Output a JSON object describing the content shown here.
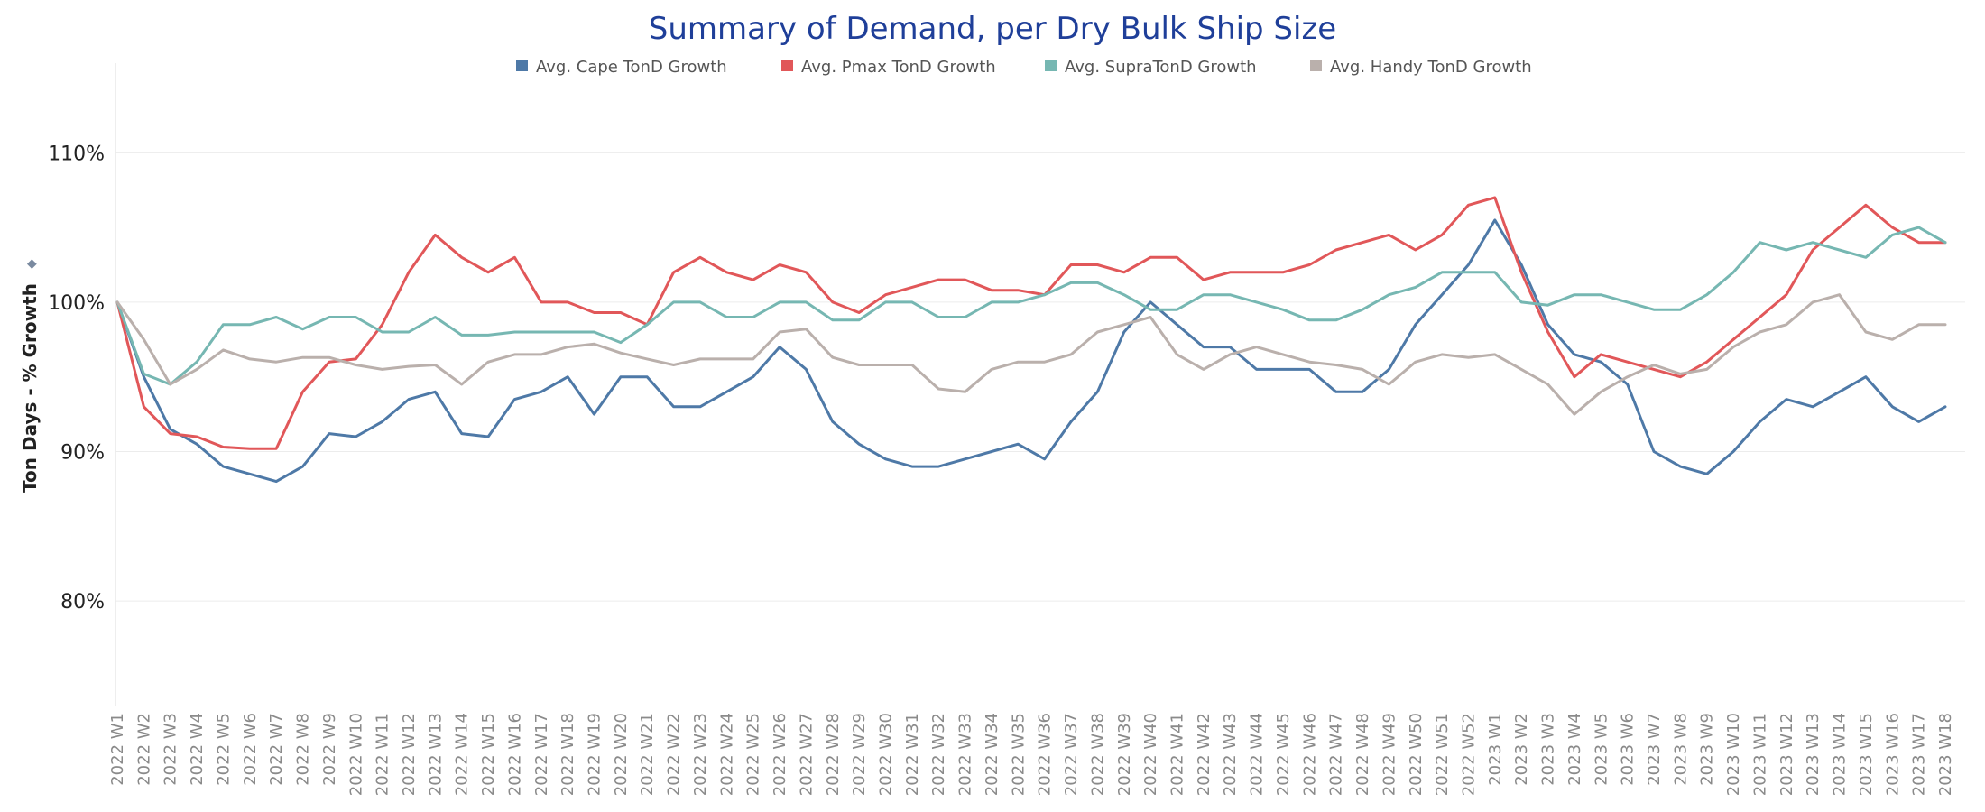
{
  "chart_data": {
    "type": "line",
    "title": "Summary of Demand, per Dry Bulk Ship Size",
    "ylabel": "Ton Days - % Growth",
    "ylabel_icon": "sort-icon",
    "ylim": [
      0.73,
      1.16
    ],
    "yticks": [
      {
        "value": 0.8,
        "label": "80%"
      },
      {
        "value": 0.9,
        "label": "90%"
      },
      {
        "value": 1.0,
        "label": "100%"
      },
      {
        "value": 1.1,
        "label": "110%"
      }
    ],
    "grid": "horizontal",
    "legend_position": "top",
    "xlabel": "",
    "x": [
      "2022 W1",
      "2022 W2",
      "2022 W3",
      "2022 W4",
      "2022 W5",
      "2022 W6",
      "2022 W7",
      "2022 W8",
      "2022 W9",
      "2022 W10",
      "2022 W11",
      "2022 W12",
      "2022 W13",
      "2022 W14",
      "2022 W15",
      "2022 W16",
      "2022 W17",
      "2022 W18",
      "2022 W19",
      "2022 W20",
      "2022 W21",
      "2022 W22",
      "2022 W23",
      "2022 W24",
      "2022 W25",
      "2022 W26",
      "2022 W27",
      "2022 W28",
      "2022 W29",
      "2022 W30",
      "2022 W31",
      "2022 W32",
      "2022 W33",
      "2022 W34",
      "2022 W35",
      "2022 W36",
      "2022 W37",
      "2022 W38",
      "2022 W39",
      "2022 W40",
      "2022 W41",
      "2022 W42",
      "2022 W43",
      "2022 W44",
      "2022 W45",
      "2022 W46",
      "2022 W47",
      "2022 W48",
      "2022 W49",
      "2022 W50",
      "2022 W51",
      "2022 W52",
      "2023 W1",
      "2023 W2",
      "2023 W3",
      "2023 W4",
      "2023 W5",
      "2023 W6",
      "2023 W7",
      "2023 W8",
      "2023 W9",
      "2023 W10",
      "2023 W11",
      "2023 W12",
      "2023 W13",
      "2023 W14",
      "2023 W15",
      "2023 W16",
      "2023 W17",
      "2023 W18"
    ],
    "series": [
      {
        "name": "Avg. Cape TonD Growth",
        "color": "#4e79a7",
        "values": [
          1.0,
          0.95,
          0.915,
          0.905,
          0.89,
          0.885,
          0.88,
          0.89,
          0.912,
          0.91,
          0.92,
          0.935,
          0.94,
          0.912,
          0.91,
          0.935,
          0.94,
          0.95,
          0.925,
          0.95,
          0.95,
          0.93,
          0.93,
          0.94,
          0.95,
          0.97,
          0.955,
          0.92,
          0.905,
          0.895,
          0.89,
          0.89,
          0.895,
          0.9,
          0.905,
          0.895,
          0.92,
          0.94,
          0.98,
          1.0,
          0.985,
          0.97,
          0.97,
          0.955,
          0.955,
          0.955,
          0.94,
          0.94,
          0.955,
          0.985,
          1.005,
          1.025,
          1.055,
          1.025,
          0.985,
          0.965,
          0.96,
          0.945,
          0.9,
          0.89,
          0.885,
          0.9,
          0.92,
          0.935,
          0.93,
          0.94,
          0.95,
          0.93,
          0.92,
          0.93
        ]
      },
      {
        "name": "Avg. Pmax TonD Growth",
        "color": "#e15759",
        "values": [
          1.0,
          0.93,
          0.912,
          0.91,
          0.903,
          0.902,
          0.902,
          0.94,
          0.96,
          0.962,
          0.985,
          1.02,
          1.045,
          1.03,
          1.02,
          1.03,
          1.0,
          1.0,
          0.993,
          0.993,
          0.985,
          1.02,
          1.03,
          1.02,
          1.015,
          1.025,
          1.02,
          1.0,
          0.993,
          1.005,
          1.01,
          1.015,
          1.015,
          1.008,
          1.008,
          1.005,
          1.025,
          1.025,
          1.02,
          1.03,
          1.03,
          1.015,
          1.02,
          1.02,
          1.02,
          1.025,
          1.035,
          1.04,
          1.045,
          1.035,
          1.045,
          1.065,
          1.07,
          1.02,
          0.98,
          0.95,
          0.965,
          0.96,
          0.955,
          0.95,
          0.96,
          0.975,
          0.99,
          1.005,
          1.035,
          1.05,
          1.065,
          1.05,
          1.04,
          1.04
        ]
      },
      {
        "name": "Avg. SupraTonD Growth",
        "color": "#76b7b2",
        "values": [
          1.0,
          0.952,
          0.945,
          0.96,
          0.985,
          0.985,
          0.99,
          0.982,
          0.99,
          0.99,
          0.98,
          0.98,
          0.99,
          0.978,
          0.978,
          0.98,
          0.98,
          0.98,
          0.98,
          0.973,
          0.985,
          1.0,
          1.0,
          0.99,
          0.99,
          1.0,
          1.0,
          0.988,
          0.988,
          1.0,
          1.0,
          0.99,
          0.99,
          1.0,
          1.0,
          1.005,
          1.013,
          1.013,
          1.005,
          0.995,
          0.995,
          1.005,
          1.005,
          1.0,
          0.995,
          0.988,
          0.988,
          0.995,
          1.005,
          1.01,
          1.02,
          1.02,
          1.02,
          1.0,
          0.998,
          1.005,
          1.005,
          1.0,
          0.995,
          0.995,
          1.005,
          1.02,
          1.04,
          1.035,
          1.04,
          1.035,
          1.03,
          1.045,
          1.05,
          1.04
        ]
      },
      {
        "name": "Avg. Handy TonD Growth",
        "color": "#bab0ac",
        "values": [
          1.0,
          0.975,
          0.945,
          0.955,
          0.968,
          0.962,
          0.96,
          0.963,
          0.963,
          0.958,
          0.955,
          0.957,
          0.958,
          0.945,
          0.96,
          0.965,
          0.965,
          0.97,
          0.972,
          0.966,
          0.962,
          0.958,
          0.962,
          0.962,
          0.962,
          0.98,
          0.982,
          0.963,
          0.958,
          0.958,
          0.958,
          0.942,
          0.94,
          0.955,
          0.96,
          0.96,
          0.965,
          0.98,
          0.985,
          0.99,
          0.965,
          0.955,
          0.965,
          0.97,
          0.965,
          0.96,
          0.958,
          0.955,
          0.945,
          0.96,
          0.965,
          0.963,
          0.965,
          0.955,
          0.945,
          0.925,
          0.94,
          0.95,
          0.958,
          0.952,
          0.955,
          0.97,
          0.98,
          0.985,
          1.0,
          1.005,
          0.98,
          0.975,
          0.985,
          0.985
        ]
      }
    ]
  }
}
